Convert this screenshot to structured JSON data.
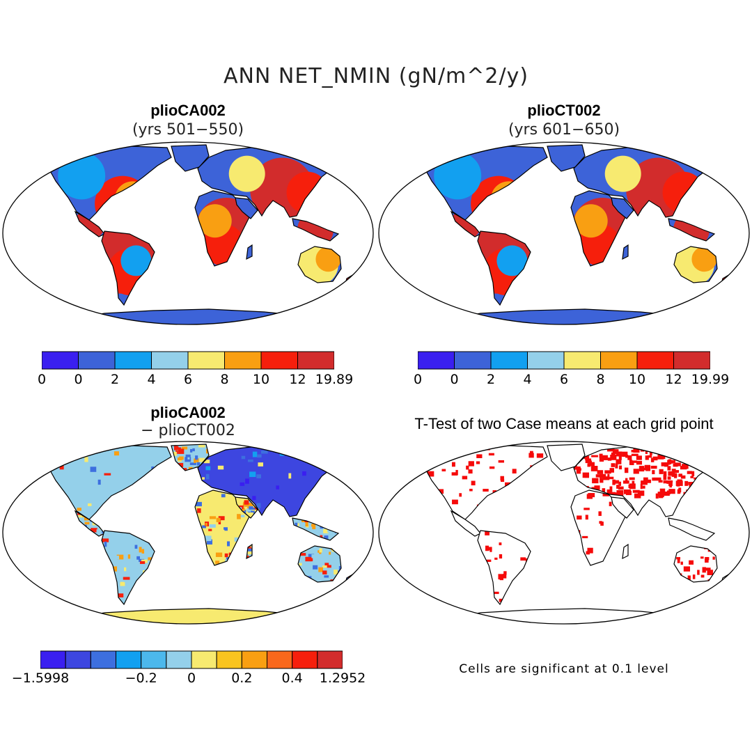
{
  "figure": {
    "title": "ANN NET_NMIN (gN/m^2/y)"
  },
  "panels": [
    {
      "case": "plioCA002",
      "subtitle": "(yrs 501−550)",
      "colorbar": {
        "colors": [
          "#3a1ff0",
          "#3d63d8",
          "#12a0f0",
          "#94d0ea",
          "#f7ea70",
          "#f99f12",
          "#f61f0c",
          "#d22c2c"
        ],
        "labels": [
          "0",
          "0",
          "2",
          "4",
          "6",
          "8",
          "10",
          "12",
          "19.89"
        ]
      }
    },
    {
      "case": "plioCT002",
      "subtitle": "(yrs 601−650)",
      "colorbar": {
        "colors": [
          "#3a1ff0",
          "#3d63d8",
          "#12a0f0",
          "#94d0ea",
          "#f7ea70",
          "#f99f12",
          "#f61f0c",
          "#d22c2c"
        ],
        "labels": [
          "0",
          "0",
          "2",
          "4",
          "6",
          "8",
          "10",
          "12",
          "19.99"
        ]
      }
    },
    {
      "case": "plioCA002",
      "subtitle": "− plioCT002",
      "colorbar": {
        "colors": [
          "#3a1ff0",
          "#3d46e0",
          "#3d6fdf",
          "#12a0f0",
          "#4cb8ec",
          "#94d0ea",
          "#f7ea70",
          "#f9c41f",
          "#f99f12",
          "#f9681c",
          "#f61f0c",
          "#d22c2c"
        ],
        "labels": [
          "−1.5998",
          "−0.2",
          "0",
          "0.2",
          "0.4",
          "1.2952"
        ]
      }
    },
    {
      "title": "T-Test of two Case means at each grid point",
      "note": "Cells are significant at 0.1 level",
      "significance_color": "#f50a0a"
    }
  ]
}
